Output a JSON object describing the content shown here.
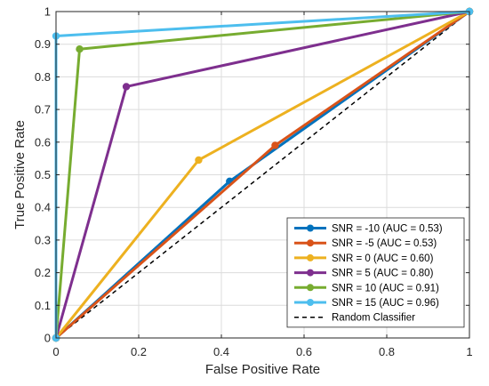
{
  "chart_data": {
    "type": "line",
    "title": "",
    "xlabel": "False Positive Rate",
    "ylabel": "True Positive Rate",
    "xlim": [
      0,
      1
    ],
    "ylim": [
      0,
      1
    ],
    "xticks": [
      0,
      0.2,
      0.4,
      0.6,
      0.8,
      1
    ],
    "yticks": [
      0,
      0.1,
      0.2,
      0.3,
      0.4,
      0.5,
      0.6,
      0.7,
      0.8,
      0.9,
      1
    ],
    "xtick_labels": [
      "0",
      "0.2",
      "0.4",
      "0.6",
      "0.8",
      "1"
    ],
    "ytick_labels": [
      "0",
      "0.1",
      "0.2",
      "0.3",
      "0.4",
      "0.5",
      "0.6",
      "0.7",
      "0.8",
      "0.9",
      "1"
    ],
    "grid": true,
    "legend_position": "bottom-right",
    "series": [
      {
        "name": "SNR = -10 (AUC = 0.53)",
        "color": "#0072BD",
        "x": [
          0,
          0.42,
          1
        ],
        "y": [
          0,
          0.48,
          1
        ]
      },
      {
        "name": "SNR = -5 (AUC = 0.53)",
        "color": "#D95319",
        "x": [
          0,
          0.53,
          1
        ],
        "y": [
          0,
          0.59,
          1
        ]
      },
      {
        "name": "SNR = 0 (AUC = 0.60)",
        "color": "#EDB120",
        "x": [
          0,
          0.345,
          1
        ],
        "y": [
          0,
          0.545,
          1
        ]
      },
      {
        "name": "SNR = 5 (AUC = 0.80)",
        "color": "#7E2F8E",
        "x": [
          0,
          0.17,
          1
        ],
        "y": [
          0,
          0.77,
          1
        ]
      },
      {
        "name": "SNR = 10 (AUC = 0.91)",
        "color": "#77AC30",
        "x": [
          0,
          0.057,
          1
        ],
        "y": [
          0,
          0.885,
          1
        ]
      },
      {
        "name": "SNR = 15 (AUC = 0.96)",
        "color": "#4DBEEE",
        "x": [
          0,
          0,
          1
        ],
        "y": [
          0,
          0.925,
          1
        ]
      }
    ],
    "reference": {
      "name": "Random Classifier",
      "color": "#000000",
      "style": "dashed",
      "x": [
        0,
        1
      ],
      "y": [
        0,
        1
      ]
    }
  }
}
